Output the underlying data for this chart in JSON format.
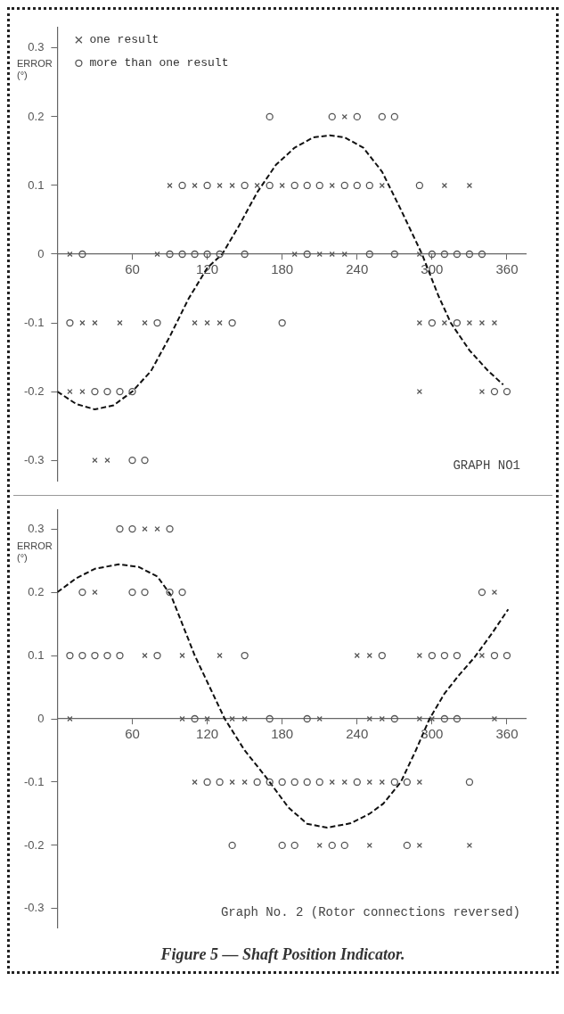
{
  "chart_data": [
    {
      "type": "scatter",
      "ylabel": "ERROR (°)",
      "xlim": [
        0,
        375
      ],
      "ylim": [
        -0.33,
        0.33
      ],
      "xticks": [
        60,
        120,
        180,
        240,
        300,
        360
      ],
      "yticks": [
        -0.3,
        -0.2,
        -0.1,
        0,
        0.1,
        0.2,
        0.3
      ],
      "grid": false,
      "legend": "top left",
      "annotations": [
        "GRAPH NO1"
      ],
      "series": [
        {
          "name": "one result",
          "type": "scatter",
          "marker": "cross",
          "color": "#555555",
          "x": [
            230,
            90,
            110,
            130,
            140,
            160,
            180,
            220,
            260,
            310,
            330,
            10,
            80,
            190,
            210,
            220,
            230,
            290,
            20,
            30,
            50,
            70,
            110,
            120,
            130,
            290,
            310,
            330,
            340,
            350,
            10,
            20,
            290,
            340,
            30,
            40
          ],
          "values": [
            0.2,
            0.1,
            0.1,
            0.1,
            0.1,
            0.1,
            0.1,
            0.1,
            0.1,
            0.1,
            0.1,
            0,
            0,
            0,
            0,
            0,
            0,
            0,
            -0.1,
            -0.1,
            -0.1,
            -0.1,
            -0.1,
            -0.1,
            -0.1,
            -0.1,
            -0.1,
            -0.1,
            -0.1,
            -0.1,
            -0.2,
            -0.2,
            -0.2,
            -0.2,
            -0.3,
            -0.3
          ]
        },
        {
          "name": "more than one result",
          "type": "scatter",
          "marker": "circle",
          "color": "#555555",
          "x": [
            170,
            220,
            240,
            260,
            270,
            100,
            120,
            150,
            170,
            190,
            200,
            210,
            230,
            240,
            250,
            290,
            20,
            90,
            100,
            110,
            120,
            130,
            150,
            200,
            250,
            270,
            300,
            310,
            320,
            330,
            340,
            10,
            80,
            140,
            180,
            300,
            320,
            30,
            40,
            50,
            60,
            350,
            360,
            60,
            70
          ],
          "values": [
            0.2,
            0.2,
            0.2,
            0.2,
            0.2,
            0.1,
            0.1,
            0.1,
            0.1,
            0.1,
            0.1,
            0.1,
            0.1,
            0.1,
            0.1,
            0.1,
            0,
            0,
            0,
            0,
            0,
            0,
            0,
            0,
            0,
            0,
            0,
            0,
            0,
            0,
            0,
            -0.1,
            -0.1,
            -0.1,
            -0.1,
            -0.1,
            -0.1,
            -0.2,
            -0.2,
            -0.2,
            -0.2,
            -0.2,
            -0.2,
            -0.3,
            -0.3
          ]
        },
        {
          "type": "line",
          "marker": "none",
          "line_style": "dashed",
          "color": "#111111",
          "x": [
            0,
            15,
            30,
            45,
            60,
            75,
            90,
            105,
            120,
            132,
            145,
            160,
            175,
            190,
            205,
            218,
            230,
            245,
            260,
            275,
            292,
            305,
            315,
            330,
            345,
            357
          ],
          "values": [
            -0.2,
            -0.218,
            -0.226,
            -0.22,
            -0.2,
            -0.17,
            -0.12,
            -0.065,
            -0.02,
            0,
            0.04,
            0.09,
            0.13,
            0.155,
            0.17,
            0.173,
            0.17,
            0.155,
            0.12,
            0.065,
            0,
            -0.06,
            -0.1,
            -0.14,
            -0.17,
            -0.19
          ]
        }
      ]
    },
    {
      "type": "scatter",
      "ylabel": "ERROR (°)",
      "xlim": [
        0,
        375
      ],
      "ylim": [
        -0.33,
        0.33
      ],
      "xticks": [
        60,
        120,
        180,
        240,
        300,
        360
      ],
      "yticks": [
        -0.3,
        -0.2,
        -0.1,
        0,
        0.1,
        0.2,
        0.3
      ],
      "grid": false,
      "annotations": [
        "Graph No. 2 (Rotor connections reversed)",
        "Figure 5 — Shaft Position Indicator."
      ],
      "series": [
        {
          "type": "scatter",
          "marker": "cross",
          "color": "#555555",
          "x": [
            70,
            80,
            30,
            350,
            70,
            100,
            130,
            240,
            250,
            290,
            340,
            10,
            100,
            120,
            140,
            150,
            210,
            250,
            260,
            290,
            300,
            350,
            110,
            140,
            150,
            220,
            230,
            250,
            260,
            290,
            210,
            250,
            290,
            330
          ],
          "values": [
            0.3,
            0.3,
            0.2,
            0.2,
            0.1,
            0.1,
            0.1,
            0.1,
            0.1,
            0.1,
            0.1,
            0,
            0,
            0,
            0,
            0,
            0,
            0,
            0,
            0,
            0,
            0,
            -0.1,
            -0.1,
            -0.1,
            -0.1,
            -0.1,
            -0.1,
            -0.1,
            -0.1,
            -0.2,
            -0.2,
            -0.2,
            -0.2
          ]
        },
        {
          "type": "scatter",
          "marker": "circle",
          "color": "#555555",
          "x": [
            50,
            60,
            90,
            20,
            60,
            70,
            90,
            100,
            340,
            10,
            20,
            30,
            40,
            50,
            80,
            150,
            260,
            300,
            310,
            320,
            350,
            360,
            110,
            170,
            200,
            270,
            310,
            320,
            120,
            130,
            160,
            170,
            180,
            190,
            200,
            210,
            240,
            270,
            280,
            330,
            140,
            180,
            190,
            220,
            230,
            280
          ],
          "values": [
            0.3,
            0.3,
            0.3,
            0.2,
            0.2,
            0.2,
            0.2,
            0.2,
            0.2,
            0.1,
            0.1,
            0.1,
            0.1,
            0.1,
            0.1,
            0.1,
            0.1,
            0.1,
            0.1,
            0.1,
            0.1,
            0.1,
            0,
            0,
            0,
            0,
            0,
            0,
            -0.1,
            -0.1,
            -0.1,
            -0.1,
            -0.1,
            -0.1,
            -0.1,
            -0.1,
            -0.1,
            -0.1,
            -0.1,
            -0.1,
            -0.2,
            -0.2,
            -0.2,
            -0.2,
            -0.2,
            -0.2
          ]
        },
        {
          "type": "line",
          "marker": "none",
          "line_style": "dashed",
          "color": "#111111",
          "x": [
            0,
            15,
            30,
            49,
            65,
            80,
            91,
            100,
            110,
            122,
            134,
            150,
            167,
            185,
            200,
            216,
            235,
            250,
            261,
            275,
            287,
            298,
            310,
            322,
            334,
            348,
            361
          ],
          "values": [
            0.2,
            0.222,
            0.237,
            0.244,
            0.24,
            0.225,
            0.195,
            0.15,
            0.1,
            0.05,
            0,
            -0.05,
            -0.092,
            -0.14,
            -0.166,
            -0.172,
            -0.165,
            -0.15,
            -0.134,
            -0.1,
            -0.05,
            0,
            0.04,
            0.07,
            0.097,
            0.135,
            0.173
          ]
        }
      ]
    }
  ]
}
